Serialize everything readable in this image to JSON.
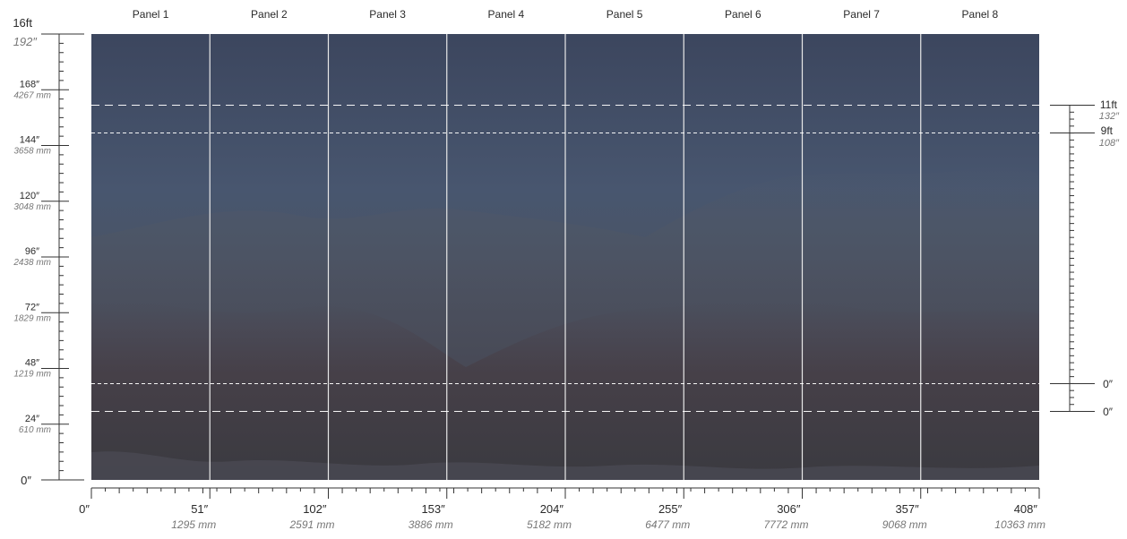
{
  "panels": [
    "Panel 1",
    "Panel 2",
    "Panel 3",
    "Panel 4",
    "Panel 5",
    "Panel 6",
    "Panel 7",
    "Panel 8"
  ],
  "left_ruler": {
    "top_label": "16ft",
    "top_inches": "192″",
    "marks": [
      {
        "inches": 168,
        "in_label": "168″",
        "mm_label": "4267 mm"
      },
      {
        "inches": 144,
        "in_label": "144″",
        "mm_label": "3658 mm"
      },
      {
        "inches": 120,
        "in_label": "120″",
        "mm_label": "3048 mm"
      },
      {
        "inches": 96,
        "in_label": "96″",
        "mm_label": "2438 mm"
      },
      {
        "inches": 72,
        "in_label": "72″",
        "mm_label": "1829 mm"
      },
      {
        "inches": 48,
        "in_label": "48″",
        "mm_label": "1219 mm"
      },
      {
        "inches": 24,
        "in_label": "24″",
        "mm_label": "610 mm"
      }
    ],
    "zero_label": "0″"
  },
  "bottom_ruler": {
    "marks": [
      {
        "inches": 0,
        "in_label": "0″",
        "mm_label": ""
      },
      {
        "inches": 51,
        "in_label": "51″",
        "mm_label": "1295 mm"
      },
      {
        "inches": 102,
        "in_label": "102″",
        "mm_label": "2591 mm"
      },
      {
        "inches": 153,
        "in_label": "153″",
        "mm_label": "3886 mm"
      },
      {
        "inches": 204,
        "in_label": "204″",
        "mm_label": "5182 mm"
      },
      {
        "inches": 255,
        "in_label": "255″",
        "mm_label": "6477 mm"
      },
      {
        "inches": 306,
        "in_label": "306″",
        "mm_label": "7772 mm"
      },
      {
        "inches": 357,
        "in_label": "357″",
        "mm_label": "9068 mm"
      },
      {
        "inches": 408,
        "in_label": "408″",
        "mm_label": "10363 mm"
      }
    ]
  },
  "right_ruler": {
    "bracket_a": {
      "ft_label": "11ft",
      "in_label": "132″",
      "zero_label": "0″"
    },
    "bracket_b": {
      "ft_label": "9ft",
      "in_label": "108″",
      "zero_label": "0″"
    }
  },
  "colors": {
    "sky_top": "#3f4a63",
    "sky_mid": "#4b5a74",
    "forest": "#4a4752",
    "ground": "#3e3e44",
    "panel_divider": "#e8e8e8",
    "ruler": "#333333"
  }
}
